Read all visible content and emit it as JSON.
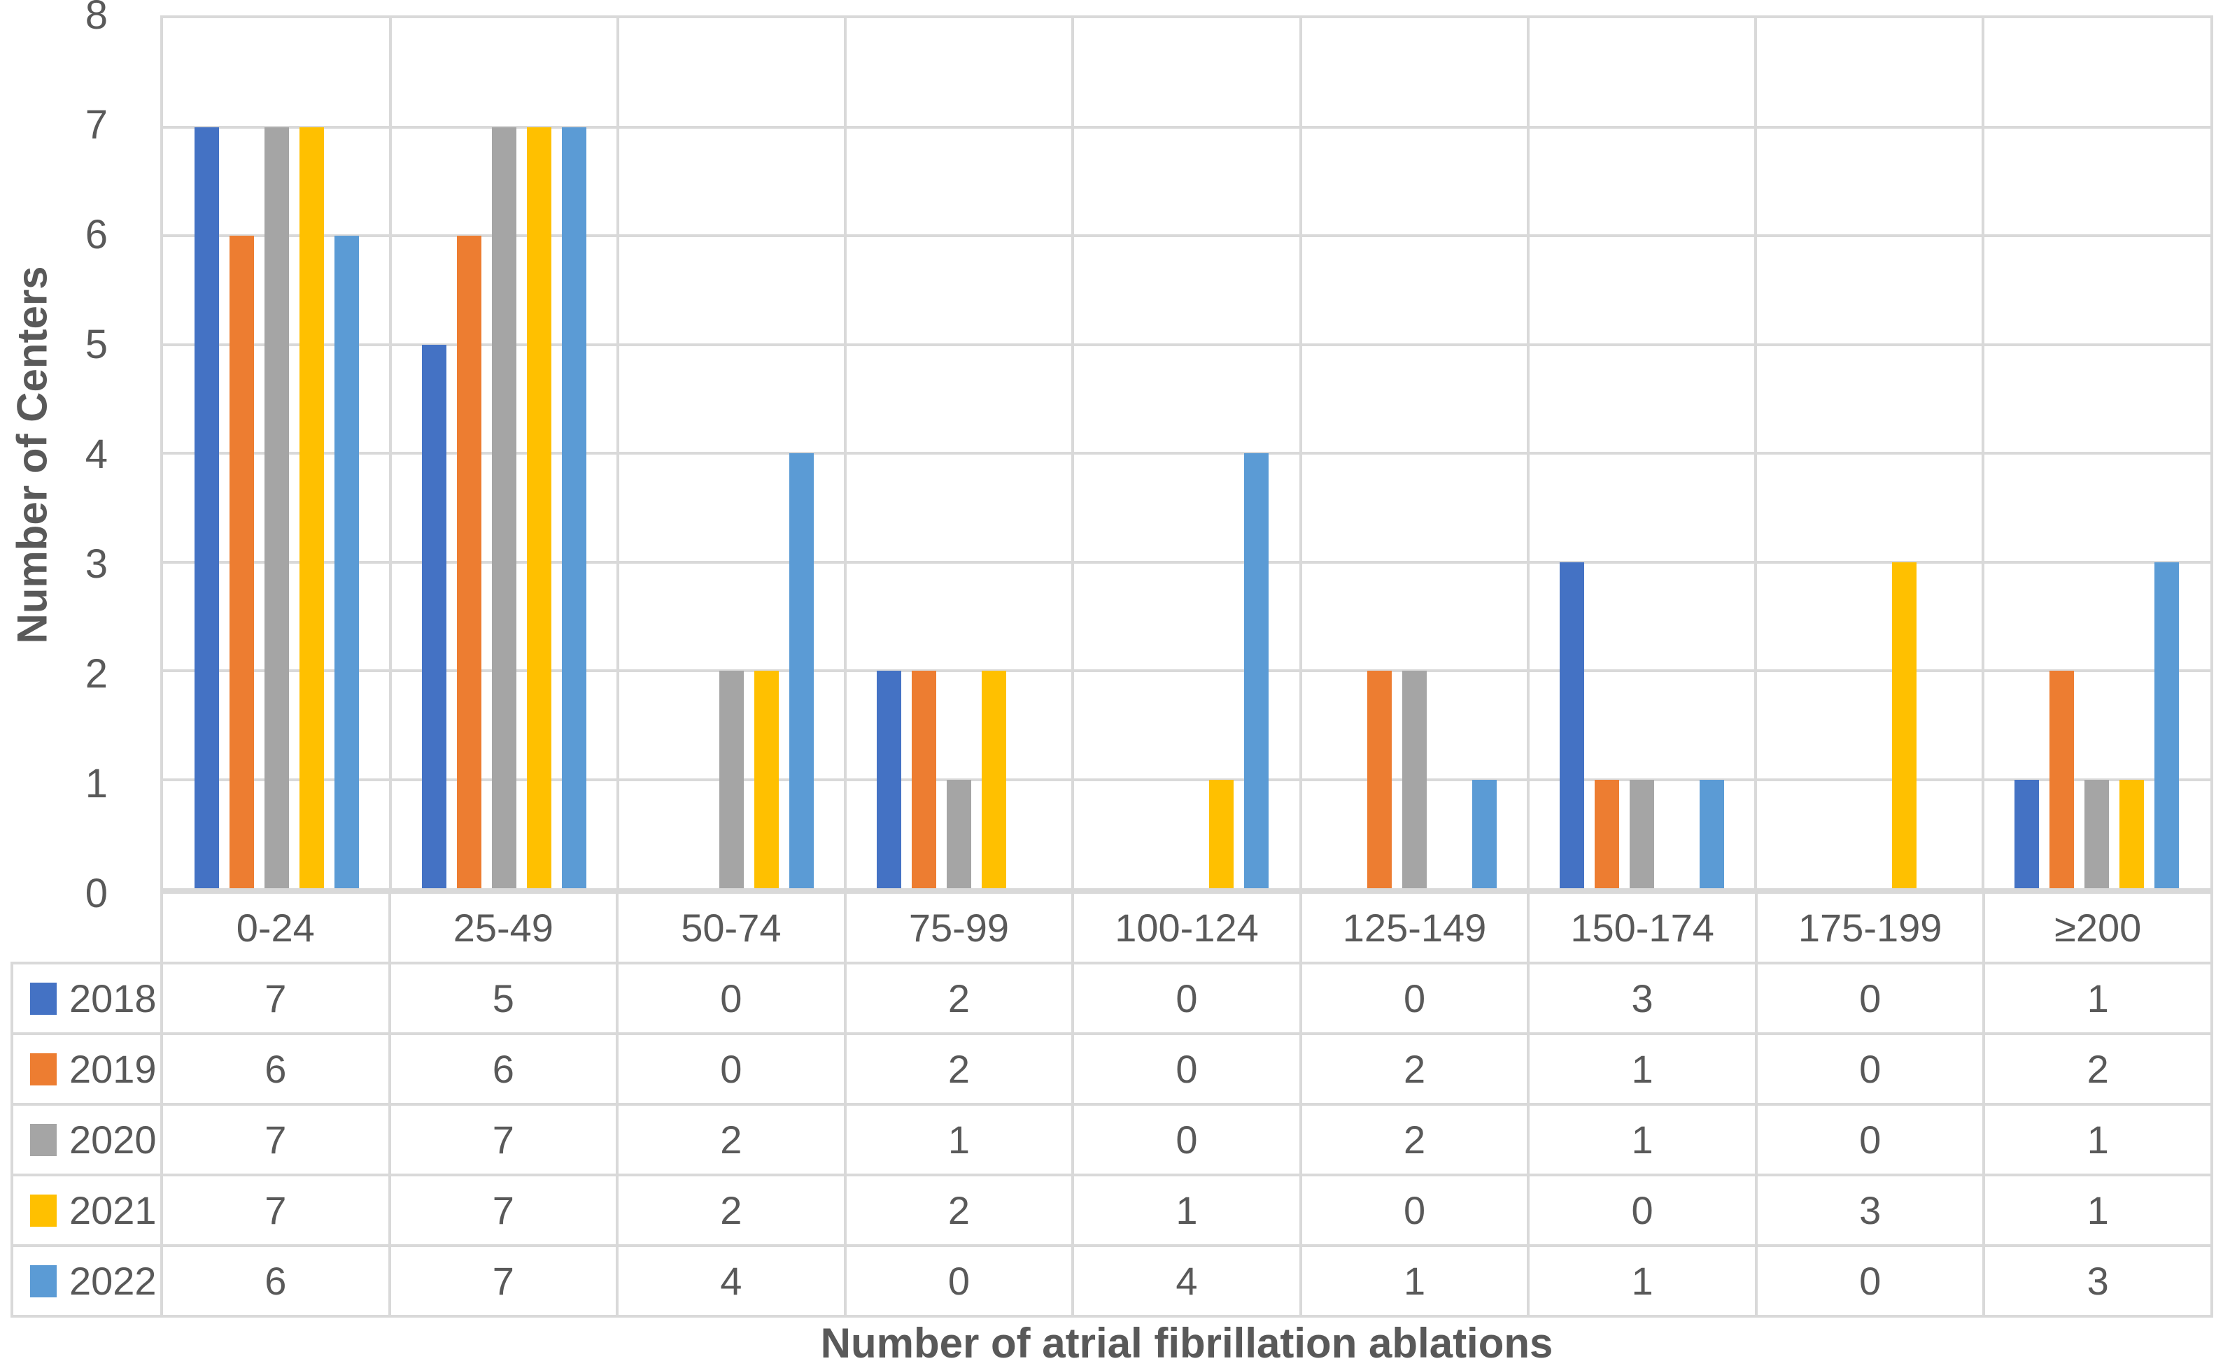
{
  "chart_data": {
    "type": "bar",
    "xlabel": "Number of atrial fibrillation ablations",
    "ylabel": "Number of Centers",
    "categories": [
      "0-24",
      "25-49",
      "50-74",
      "75-99",
      "100-124",
      "125-149",
      "150-174",
      "175-199",
      "≥200"
    ],
    "series": [
      {
        "name": "2018",
        "color": "#4472C4",
        "values": [
          7,
          5,
          0,
          2,
          0,
          0,
          3,
          0,
          1
        ]
      },
      {
        "name": "2019",
        "color": "#ED7D31",
        "values": [
          6,
          6,
          0,
          2,
          0,
          2,
          1,
          0,
          2
        ]
      },
      {
        "name": "2020",
        "color": "#A5A5A5",
        "values": [
          7,
          7,
          2,
          1,
          0,
          2,
          1,
          0,
          1
        ]
      },
      {
        "name": "2021",
        "color": "#FFC000",
        "values": [
          7,
          7,
          2,
          2,
          1,
          0,
          0,
          3,
          1
        ]
      },
      {
        "name": "2022",
        "color": "#5B9BD5",
        "values": [
          6,
          7,
          4,
          0,
          4,
          1,
          1,
          0,
          3
        ]
      }
    ],
    "ylim": [
      0,
      8
    ],
    "yticks": [
      0,
      1,
      2,
      3,
      4,
      5,
      6,
      7,
      8
    ],
    "grid": true,
    "legend_position": "table-left",
    "colors": {
      "gridline": "#D9D9D9",
      "text": "#595959"
    }
  }
}
